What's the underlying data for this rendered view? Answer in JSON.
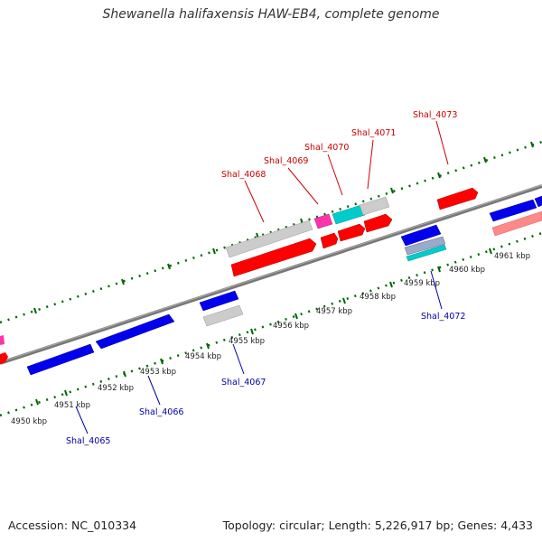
{
  "title": "Shewanella halifaxensis HAW-EB4, complete genome",
  "footer": {
    "accession": "Accession: NC_010334",
    "summary": "Topology: circular; Length: 5,226,917 bp; Genes: 4,433"
  },
  "colors": {
    "forward_gene": "#ff0000",
    "reverse_gene": "#0000ff",
    "pseudo_gene": "#cccccc",
    "rna_gene": "#00cccc",
    "other_gene": "#ff33aa",
    "light_gene": "#ff8888",
    "forward_label": "#cc0000",
    "reverse_label": "#0000aa",
    "tick": "#006600"
  },
  "ticks": [
    {
      "kbp": 4950,
      "label": "4950 kbp"
    },
    {
      "kbp": 4951,
      "label": "4951 kbp"
    },
    {
      "kbp": 4952,
      "label": "4952 kbp"
    },
    {
      "kbp": 4953,
      "label": "4953 kbp"
    },
    {
      "kbp": 4954,
      "label": "4954 kbp"
    },
    {
      "kbp": 4955,
      "label": "4955 kbp"
    },
    {
      "kbp": 4956,
      "label": "4956 kbp"
    },
    {
      "kbp": 4957,
      "label": "4957 kbp"
    },
    {
      "kbp": 4958,
      "label": "4958 kbp"
    },
    {
      "kbp": 4959,
      "label": "4959 kbp"
    },
    {
      "kbp": 4960,
      "label": "4960 kbp"
    },
    {
      "kbp": 4961,
      "label": "4961 kbp"
    }
  ],
  "gene_labels": [
    {
      "name": "Shal_4065",
      "strand": "reverse"
    },
    {
      "name": "Shal_4066",
      "strand": "reverse"
    },
    {
      "name": "Shal_4067",
      "strand": "reverse"
    },
    {
      "name": "Shal_4068",
      "strand": "forward"
    },
    {
      "name": "Shal_4069",
      "strand": "forward"
    },
    {
      "name": "Shal_4070",
      "strand": "forward"
    },
    {
      "name": "Shal_4071",
      "strand": "forward"
    },
    {
      "name": "Shal_4072",
      "strand": "reverse"
    },
    {
      "name": "Shal_4073",
      "strand": "forward"
    }
  ]
}
